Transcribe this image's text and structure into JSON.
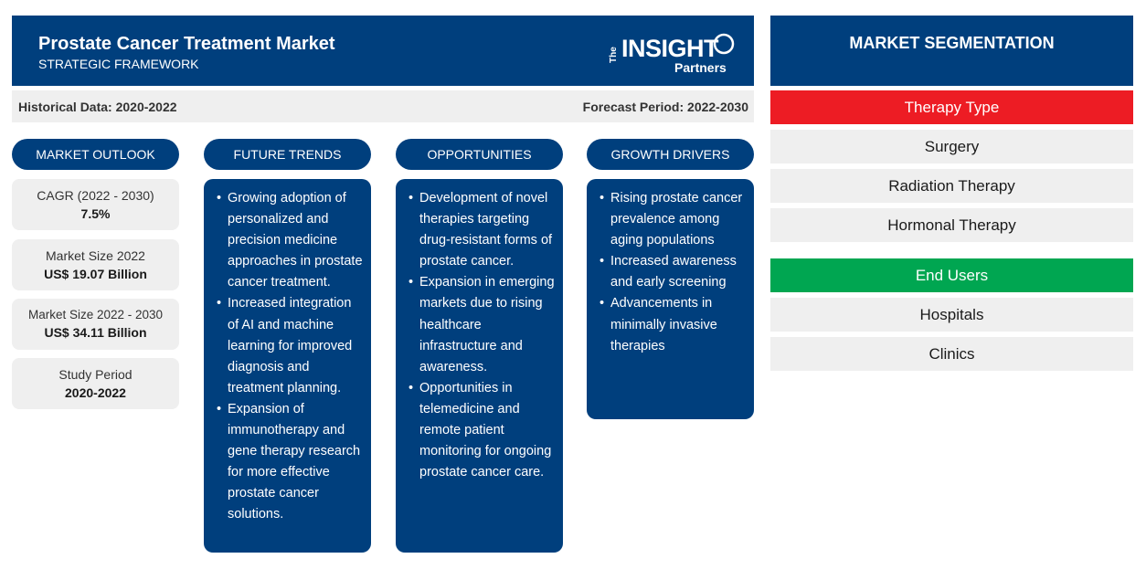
{
  "header": {
    "title": "Prostate Cancer Treatment Market",
    "subtitle": "STRATEGIC FRAMEWORK",
    "logo": {
      "the": "The",
      "insight": "INSIGHT",
      "partners": "Partners"
    }
  },
  "periods": {
    "historical": "Historical Data: 2020-2022",
    "forecast": "Forecast Period: 2022-2030"
  },
  "columns": {
    "outlook": "MARKET OUTLOOK",
    "trends": "FUTURE TRENDS",
    "opportunities": "OPPORTUNITIES",
    "drivers": "GROWTH DRIVERS"
  },
  "outlook": [
    {
      "label": "CAGR (2022 - 2030)",
      "value": "7.5%"
    },
    {
      "label": "Market Size 2022",
      "value": "US$ 19.07 Billion"
    },
    {
      "label": "Market Size 2022 - 2030",
      "value": "US$ 34.11 Billion"
    },
    {
      "label": "Study Period",
      "value": "2020-2022"
    }
  ],
  "trends": [
    "Growing adoption of personalized and precision medicine approaches in prostate cancer treatment.",
    "Increased integration of AI and machine learning for improved diagnosis and treatment planning.",
    "Expansion of immunotherapy and gene therapy research for more effective prostate cancer solutions."
  ],
  "opportunities": [
    "Development of novel therapies targeting drug-resistant forms of prostate cancer.",
    "Expansion in emerging markets due to rising healthcare infrastructure and awareness.",
    "Opportunities in telemedicine and remote patient monitoring for ongoing prostate cancer care."
  ],
  "drivers": [
    "Rising prostate cancer prevalence among aging populations",
    "Increased awareness and early screening",
    "Advancements in minimally invasive therapies"
  ],
  "segmentation": {
    "title": "MARKET SEGMENTATION",
    "therapy_type": {
      "label": "Therapy Type",
      "color": "#ed1c24",
      "items": [
        "Surgery",
        "Radiation Therapy",
        "Hormonal Therapy"
      ]
    },
    "end_users": {
      "label": "End Users",
      "color": "#00a651",
      "items": [
        "Hospitals",
        "Clinics"
      ]
    }
  },
  "colors": {
    "primary": "#003f7d",
    "panel": "#efefef"
  }
}
